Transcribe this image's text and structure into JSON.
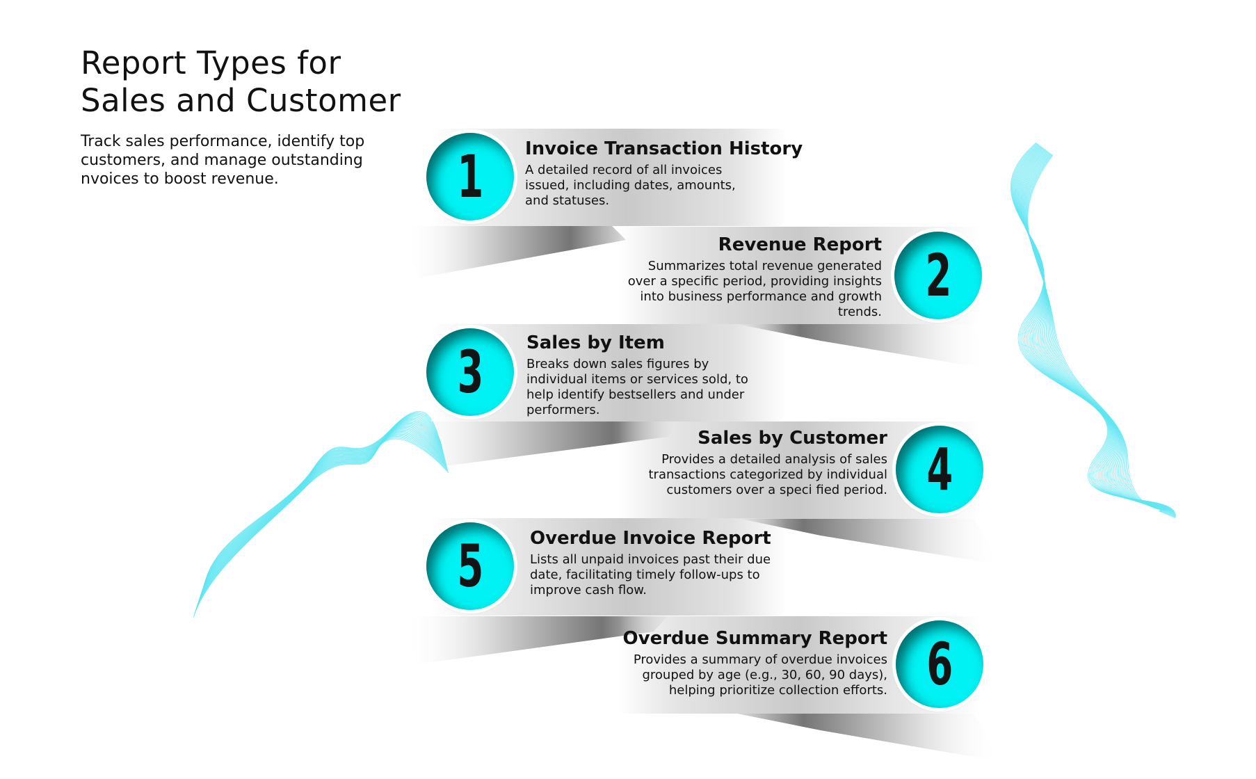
{
  "header": {
    "title_line1": "Report Types for",
    "title_line2": "Sales and Customer",
    "subtitle": "Track sales performance, identify top customers, and manage outstanding nvoices to boost revenue."
  },
  "colors": {
    "accent": "#00f2f4",
    "number_text": "#141414",
    "ribbon_mid": "#c9c9c9",
    "wave_lines": "#5fe6f2"
  },
  "items": [
    {
      "number": "1",
      "title": "Invoice Transaction History",
      "description": "A detailed record of all invoices issued, including dates, amounts, and statuses."
    },
    {
      "number": "2",
      "title": "Revenue Report",
      "description": "Summarizes total revenue generated over a specific period, providing insights into business performance and growth trends."
    },
    {
      "number": "3",
      "title": "Sales by Item",
      "description": "Breaks down sales figures by individual items or services sold, to help identify bestsellers and under performers."
    },
    {
      "number": "4",
      "title": "Sales by Customer",
      "description": "Provides a detailed analysis of sales transactions categorized by individual customers over a speci fied period."
    },
    {
      "number": "5",
      "title": "Overdue Invoice Report",
      "description": "Lists all unpaid invoices past their due date, facilitating timely follow-ups to improve cash flow."
    },
    {
      "number": "6",
      "title": "Overdue Summary Report",
      "description": "Provides a summary of overdue invoices grouped by age (e.g., 30, 60, 90 days), helping prioritize collection efforts."
    }
  ]
}
